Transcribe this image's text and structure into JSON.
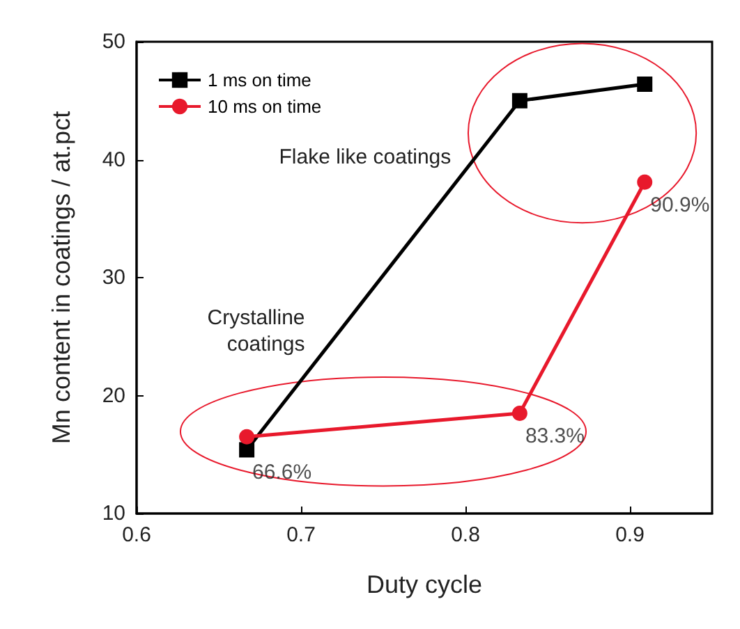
{
  "chart_data": {
    "type": "line",
    "xlabel": "Duty cycle",
    "ylabel": "Mn content in coatings / at.pct",
    "x": [
      0.667,
      0.833,
      0.909
    ],
    "series": [
      {
        "name": "1 ms on time",
        "color": "#000000",
        "marker": "square",
        "values": [
          15.4,
          45.0,
          46.4
        ]
      },
      {
        "name": "10 ms on time",
        "color": "#e8192c",
        "marker": "circle",
        "values": [
          16.5,
          18.5,
          38.1
        ]
      }
    ],
    "xlim": [
      0.6,
      0.95
    ],
    "xticks": [
      0.6,
      0.7,
      0.8,
      0.9
    ],
    "ylim": [
      10,
      50
    ],
    "yticks": [
      10,
      20,
      30,
      40,
      50
    ],
    "annotations": [
      {
        "text": "66.6%",
        "x": 0.667,
        "y": 15.4
      },
      {
        "text": "83.3%",
        "x": 0.833,
        "y": 18.5
      },
      {
        "text": "90.9%",
        "x": 0.909,
        "y": 38.1
      },
      "Flake like coatings",
      "Crystalline\ncoatings"
    ],
    "legend": "top left",
    "grid": false,
    "line_style": "solid"
  }
}
